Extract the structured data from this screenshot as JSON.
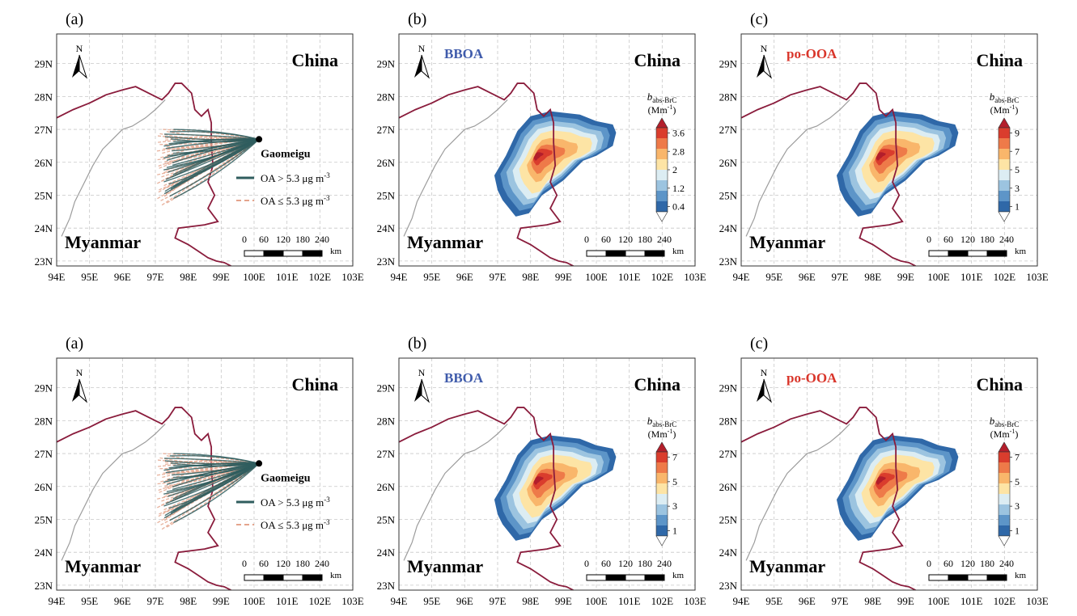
{
  "lon_labels": [
    "94E",
    "95E",
    "96E",
    "97E",
    "98E",
    "99E",
    "100E",
    "101E",
    "102E",
    "103E"
  ],
  "lat_labels": [
    "23N",
    "24N",
    "25N",
    "26N",
    "27N",
    "28N",
    "29N"
  ],
  "scalebar": {
    "ticks": [
      "0",
      "60",
      "120",
      "180",
      "240"
    ],
    "unit": "km"
  },
  "north_label": "N",
  "countries": {
    "china": "China",
    "myanmar": "Myanmar"
  },
  "site_label": "Gaomeigu",
  "colorbar_title": {
    "main": "b",
    "sub": "abs-BrC",
    "unit_pre": "(Mm",
    "unit_sup": "-1",
    "unit_post": ")"
  },
  "legend": {
    "high": {
      "pre": "OA > 5.3 μg m",
      "sup": "-3"
    },
    "low": {
      "pre": "OA ≤ 5.3 μg m",
      "sup": "-3"
    }
  },
  "colors": {
    "high_traj": "#2f5d5e",
    "low_traj": "#e4a48c",
    "border_intl": "#8a1c3c",
    "border_prov": "#9c9c9c",
    "bboa_label": "#3f5bab",
    "pooa_label": "#d9352a"
  },
  "rows": [
    {
      "panels": [
        {
          "type": "trajectory",
          "label": "(a)"
        },
        {
          "type": "contour",
          "label": "(b)",
          "source": "BBOA",
          "colorbar_ticks": [
            "3.6",
            "2.8",
            "2",
            "1.2",
            "0.4"
          ]
        },
        {
          "type": "contour",
          "label": "(c)",
          "source": "po-OOA",
          "colorbar_ticks": [
            "9",
            "7",
            "5",
            "3",
            "1"
          ]
        }
      ]
    },
    {
      "panels": [
        {
          "type": "trajectory",
          "label": "(a)"
        },
        {
          "type": "contour",
          "label": "(b)",
          "source": "BBOA",
          "colorbar_ticks": [
            "7",
            "5",
            "3",
            "1"
          ]
        },
        {
          "type": "contour",
          "label": "(c)",
          "source": "po-OOA",
          "colorbar_ticks": [
            "7",
            "5",
            "3",
            "1"
          ]
        }
      ]
    }
  ]
}
